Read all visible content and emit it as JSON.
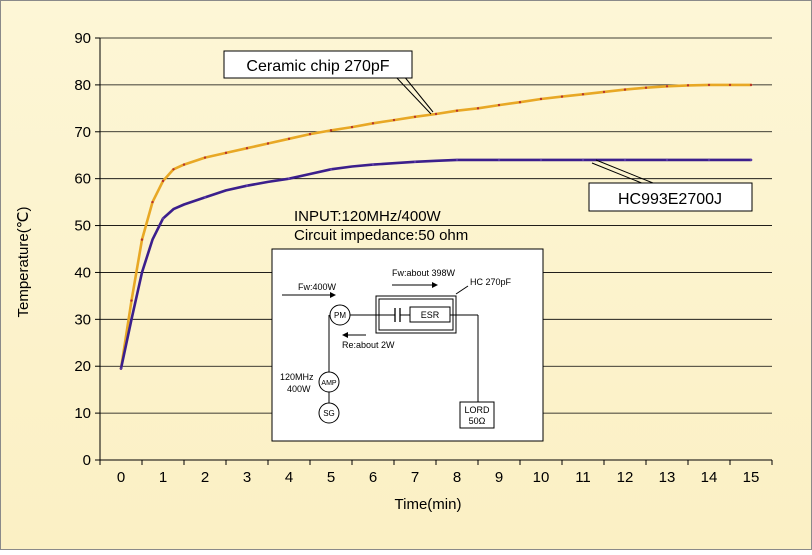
{
  "chart_data": {
    "type": "line",
    "xlabel": "Time(min)",
    "ylabel": "Temperature(℃)",
    "xlim": [
      -0.5,
      15.5
    ],
    "ylim": [
      0,
      90
    ],
    "x_ticks": [
      "0",
      "1",
      "2",
      "3",
      "4",
      "5",
      "6",
      "7",
      "8",
      "9",
      "10",
      "11",
      "12",
      "13",
      "14",
      "15"
    ],
    "y_ticks": [
      "0",
      "10",
      "20",
      "30",
      "40",
      "50",
      "60",
      "70",
      "80",
      "90"
    ],
    "grid": "horizontal",
    "series": [
      {
        "name": "Ceramic chip 270pF",
        "color": "#e8a825",
        "x": [
          0,
          0.25,
          0.5,
          0.75,
          1,
          1.25,
          1.5,
          2,
          2.5,
          3,
          3.5,
          4,
          4.5,
          5,
          5.5,
          6,
          6.5,
          7,
          7.5,
          8,
          8.5,
          9,
          9.5,
          10,
          10.5,
          11,
          11.5,
          12,
          12.5,
          13,
          13.5,
          14,
          14.5,
          15
        ],
        "y": [
          19.5,
          34,
          47,
          55,
          59.5,
          62,
          63,
          64.5,
          65.5,
          66.5,
          67.5,
          68.5,
          69.5,
          70.3,
          71,
          71.8,
          72.5,
          73.2,
          73.8,
          74.5,
          75,
          75.7,
          76.3,
          77,
          77.5,
          78,
          78.5,
          79,
          79.4,
          79.7,
          79.9,
          80,
          80,
          80
        ]
      },
      {
        "name": "HC993E2700J",
        "color": "#3b1f8c",
        "x": [
          0,
          0.25,
          0.5,
          0.75,
          1,
          1.25,
          1.5,
          2,
          2.5,
          3,
          3.5,
          4,
          4.5,
          5,
          5.5,
          6,
          6.5,
          7,
          7.5,
          8,
          9,
          10,
          11,
          12,
          13,
          14,
          15
        ],
        "y": [
          19.5,
          30,
          40,
          47,
          51.5,
          53.5,
          54.5,
          56,
          57.5,
          58.5,
          59.3,
          60,
          61,
          62,
          62.6,
          63,
          63.3,
          63.6,
          63.8,
          64,
          64,
          64,
          64,
          64,
          64,
          64,
          64
        ]
      }
    ],
    "annotations": {
      "input_line1": "INPUT:120MHz/400W",
      "input_line2": "Circuit impedance:50 ohm"
    }
  },
  "circuit": {
    "fw_label": "Fw:400W",
    "fw_about": "Fw:about 398W",
    "hc_label": "HC  270pF",
    "re_label": "Re:about 2W",
    "pm": "PM",
    "esr": "ESR",
    "amp": "AMP",
    "sg": "SG",
    "freq": "120MHz",
    "power": "400W",
    "load1": "LORD",
    "load2": "50Ω"
  }
}
